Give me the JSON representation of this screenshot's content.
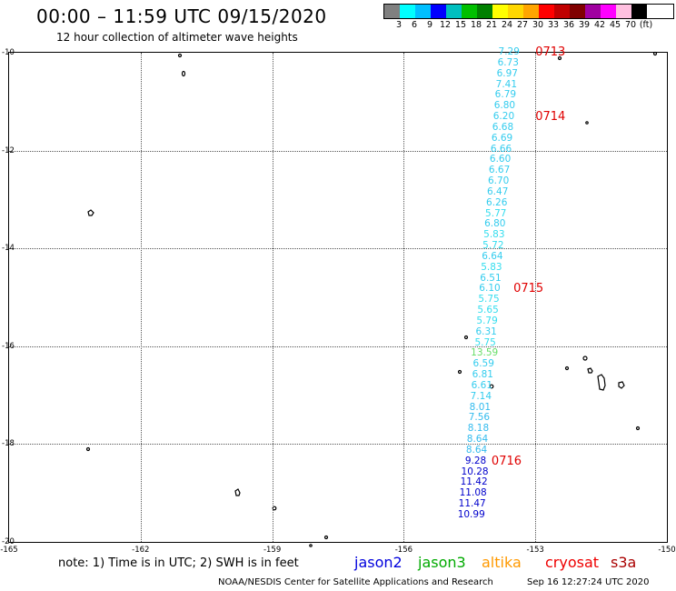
{
  "header": {
    "title": "00:00 – 11:59 UTC 09/15/2020",
    "subtitle": "12 hour collection of altimeter wave heights"
  },
  "color_scale": {
    "colors": [
      "#808080",
      "#00ffff",
      "#00bfff",
      "#0000ff",
      "#00bfbf",
      "#00c000",
      "#008000",
      "#ffff00",
      "#ffd700",
      "#ffa500",
      "#ff0000",
      "#c00000",
      "#800000",
      "#a000a0",
      "#ff00ff",
      "#ffc0e0",
      "#000000"
    ],
    "labels": [
      "3",
      "6",
      "9",
      "12",
      "15",
      "18",
      "21",
      "24",
      "27",
      "30",
      "33",
      "36",
      "39",
      "42",
      "45",
      "70",
      "(ft)"
    ]
  },
  "map": {
    "lon_min": -165,
    "lon_max": -150,
    "lat_min": -20,
    "lat_max": -10,
    "lon_ticks": [
      "-165",
      "-162",
      "-159",
      "-156",
      "-153",
      "-150"
    ],
    "lat_ticks": [
      "-10",
      "-12",
      "-14",
      "-16",
      "-18",
      "-20"
    ]
  },
  "track": {
    "readings": [
      {
        "value": "7.29",
        "lat": -10.0,
        "lon": -153.6,
        "color": "#33ccee"
      },
      {
        "value": "6.73",
        "lat": -10.22,
        "lon": -153.62,
        "color": "#33ccee"
      },
      {
        "value": "6.97",
        "lat": -10.44,
        "lon": -153.64,
        "color": "#33ccee"
      },
      {
        "value": "7.41",
        "lat": -10.66,
        "lon": -153.66,
        "color": "#33ccee"
      },
      {
        "value": "6.79",
        "lat": -10.88,
        "lon": -153.68,
        "color": "#33ccee"
      },
      {
        "value": "6.80",
        "lat": -11.1,
        "lon": -153.7,
        "color": "#33ccee"
      },
      {
        "value": "6.20",
        "lat": -11.32,
        "lon": -153.72,
        "color": "#33ccee"
      },
      {
        "value": "6.68",
        "lat": -11.54,
        "lon": -153.74,
        "color": "#33ccee"
      },
      {
        "value": "6.69",
        "lat": -11.76,
        "lon": -153.76,
        "color": "#33ccee"
      },
      {
        "value": "6.66",
        "lat": -11.98,
        "lon": -153.78,
        "color": "#33ccee"
      },
      {
        "value": "6.60",
        "lat": -12.2,
        "lon": -153.8,
        "color": "#33ccee"
      },
      {
        "value": "6.67",
        "lat": -12.42,
        "lon": -153.82,
        "color": "#33ccee"
      },
      {
        "value": "6.70",
        "lat": -12.64,
        "lon": -153.84,
        "color": "#33ccee"
      },
      {
        "value": "6.47",
        "lat": -12.86,
        "lon": -153.86,
        "color": "#33ccee"
      },
      {
        "value": "6.26",
        "lat": -13.08,
        "lon": -153.88,
        "color": "#33ccee"
      },
      {
        "value": "5.77",
        "lat": -13.3,
        "lon": -153.9,
        "color": "#33ddee"
      },
      {
        "value": "6.80",
        "lat": -13.52,
        "lon": -153.92,
        "color": "#33ccee"
      },
      {
        "value": "5.83",
        "lat": -13.74,
        "lon": -153.94,
        "color": "#33ddee"
      },
      {
        "value": "5.72",
        "lat": -13.96,
        "lon": -153.96,
        "color": "#33ddee"
      },
      {
        "value": "6.64",
        "lat": -14.18,
        "lon": -153.98,
        "color": "#33ccee"
      },
      {
        "value": "5.83",
        "lat": -14.4,
        "lon": -154.0,
        "color": "#33ddee"
      },
      {
        "value": "6.51",
        "lat": -14.62,
        "lon": -154.02,
        "color": "#33ccee"
      },
      {
        "value": "6.10",
        "lat": -14.84,
        "lon": -154.04,
        "color": "#33ccee"
      },
      {
        "value": "5.75",
        "lat": -15.06,
        "lon": -154.06,
        "color": "#33ddee"
      },
      {
        "value": "5.65",
        "lat": -15.28,
        "lon": -154.08,
        "color": "#33ddee"
      },
      {
        "value": "5.79",
        "lat": -15.5,
        "lon": -154.1,
        "color": "#33ddee"
      },
      {
        "value": "6.31",
        "lat": -15.72,
        "lon": -154.12,
        "color": "#33ccee"
      },
      {
        "value": "5.75",
        "lat": -15.94,
        "lon": -154.14,
        "color": "#33ddee"
      },
      {
        "value": "13.59",
        "lat": -16.16,
        "lon": -154.16,
        "color": "#66dd66"
      },
      {
        "value": "6.59",
        "lat": -16.38,
        "lon": -154.18,
        "color": "#33ccee"
      },
      {
        "value": "6.81",
        "lat": -16.6,
        "lon": -154.2,
        "color": "#33ccee"
      },
      {
        "value": "6.61",
        "lat": -16.82,
        "lon": -154.22,
        "color": "#33ccee"
      },
      {
        "value": "7.14",
        "lat": -17.04,
        "lon": -154.24,
        "color": "#33ccee"
      },
      {
        "value": "8.01",
        "lat": -17.26,
        "lon": -154.26,
        "color": "#33bbee"
      },
      {
        "value": "7.56",
        "lat": -17.48,
        "lon": -154.28,
        "color": "#33bbee"
      },
      {
        "value": "8.18",
        "lat": -17.7,
        "lon": -154.3,
        "color": "#33bbee"
      },
      {
        "value": "8.64",
        "lat": -17.92,
        "lon": -154.32,
        "color": "#33bbee"
      },
      {
        "value": "8.64",
        "lat": -18.14,
        "lon": -154.34,
        "color": "#33bbee"
      },
      {
        "value": "9.28",
        "lat": -18.36,
        "lon": -154.36,
        "color": "#0000cc"
      },
      {
        "value": "10.28",
        "lat": -18.58,
        "lon": -154.38,
        "color": "#0000cc"
      },
      {
        "value": "11.42",
        "lat": -18.8,
        "lon": -154.4,
        "color": "#0000cc"
      },
      {
        "value": "11.08",
        "lat": -19.02,
        "lon": -154.42,
        "color": "#0000cc"
      },
      {
        "value": "11.47",
        "lat": -19.24,
        "lon": -154.44,
        "color": "#0000cc"
      },
      {
        "value": "10.99",
        "lat": -19.46,
        "lon": -154.46,
        "color": "#0000cc"
      }
    ],
    "time_marks": [
      {
        "label": "0713",
        "lat": -10.0,
        "lon": -153.0
      },
      {
        "label": "0714",
        "lat": -11.32,
        "lon": -153.0
      },
      {
        "label": "0715",
        "lat": -14.84,
        "lon": -153.5
      },
      {
        "label": "0716",
        "lat": -18.36,
        "lon": -154.0
      }
    ]
  },
  "footer": {
    "note": "note: 1) Time is in UTC; 2) SWH is in feet",
    "satellites": [
      {
        "name": "jason2",
        "color": "#0000dd"
      },
      {
        "name": "jason3",
        "color": "#00aa00"
      },
      {
        "name": "altika",
        "color": "#ff9900"
      },
      {
        "name": "cryosat",
        "color": "#ee0000"
      },
      {
        "name": "s3a",
        "color": "#aa0000"
      }
    ],
    "credit": "NOAA/NESDIS Center for Satellite Applications and Research",
    "timestamp": "Sep 16 12:27:24 UTC 2020"
  }
}
